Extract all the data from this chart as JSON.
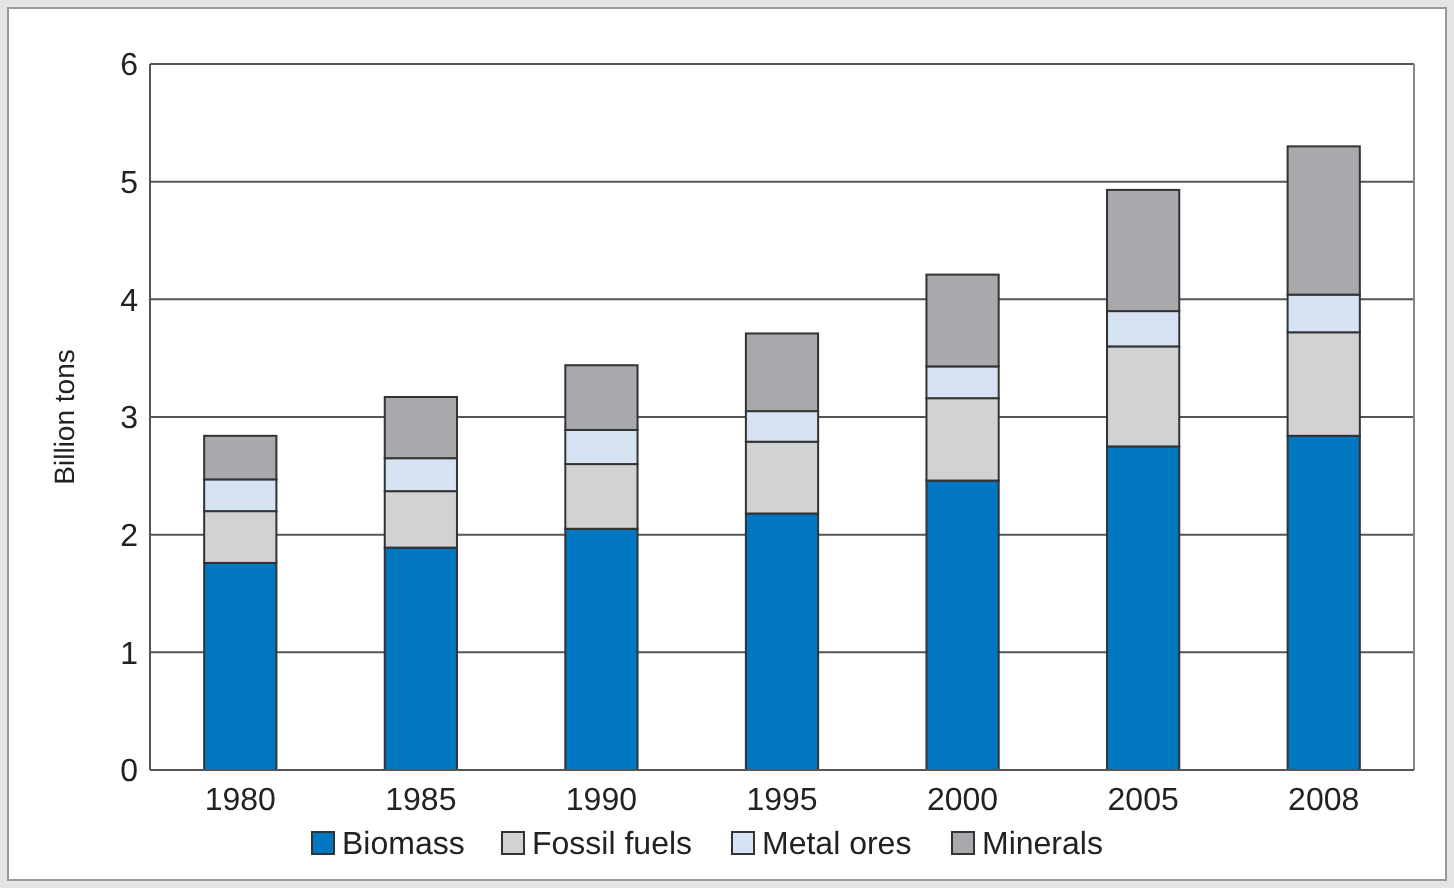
{
  "chart_data": {
    "type": "bar",
    "stacked": true,
    "ylabel": "Billion tons",
    "categories": [
      "1980",
      "1985",
      "1990",
      "1995",
      "2000",
      "2005",
      "2008"
    ],
    "series": [
      {
        "name": "Biomass",
        "color": "#0077c0",
        "values": [
          1.76,
          1.89,
          2.05,
          2.18,
          2.46,
          2.75,
          2.84
        ]
      },
      {
        "name": "Fossil fuels",
        "color": "#d1d2d4",
        "values": [
          0.44,
          0.48,
          0.55,
          0.61,
          0.7,
          0.85,
          0.88
        ]
      },
      {
        "name": "Metal ores",
        "color": "#d6e3f3",
        "values": [
          0.27,
          0.28,
          0.29,
          0.26,
          0.27,
          0.3,
          0.32
        ]
      },
      {
        "name": "Minerals",
        "color": "#a7a9ac",
        "values": [
          0.37,
          0.52,
          0.55,
          0.66,
          0.78,
          1.03,
          1.26
        ]
      }
    ],
    "ylim": [
      0,
      6
    ],
    "yticks": [
      0,
      1,
      2,
      3,
      4,
      5,
      6
    ],
    "grid": "y",
    "legend": "bottom"
  }
}
